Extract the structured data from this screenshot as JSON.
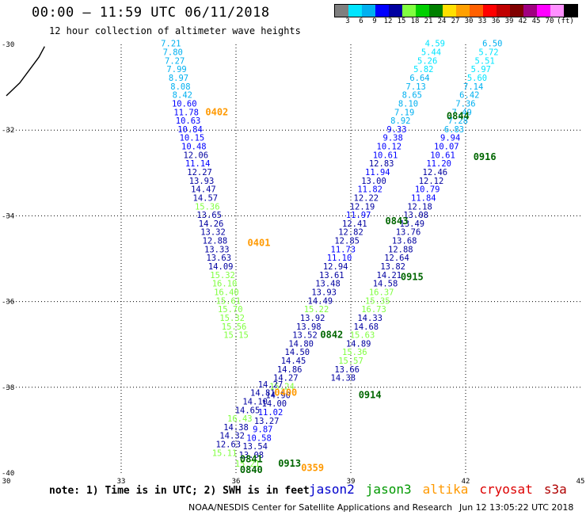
{
  "header": {
    "title": "00:00 – 11:59 UTC 06/11/2018",
    "subtitle": "12 hour collection of altimeter wave heights"
  },
  "colorbar": {
    "colors": [
      "#7f7f7f",
      "#00e5ff",
      "#00b0f0",
      "#0000ff",
      "#0000a0",
      "#80ff40",
      "#00d000",
      "#008000",
      "#ffe000",
      "#ffa000",
      "#ff6000",
      "#ff0000",
      "#c00000",
      "#800000",
      "#a00080",
      "#ff00ff",
      "#ff90ff",
      "#000000"
    ],
    "ticks": [
      "3",
      "6",
      "9",
      "12",
      "15",
      "18",
      "21",
      "24",
      "27",
      "30",
      "33",
      "36",
      "39",
      "42",
      "45",
      "70",
      "(ft)"
    ]
  },
  "footer": {
    "note": "note: 1) Time is in UTC; 2) SWH is in feet",
    "credit": "NOAA/NESDIS Center for Satellite Applications and Research",
    "timestamp": "Jun 12 13:05:22 UTC 2018"
  },
  "legend": [
    {
      "name": "jason2",
      "color": "#0000cc"
    },
    {
      "name": "jason3",
      "color": "#009900"
    },
    {
      "name": "altika",
      "color": "#ff9900"
    },
    {
      "name": "cryosat",
      "color": "#dd0000"
    },
    {
      "name": "s3a",
      "color": "#b00000"
    }
  ],
  "chart_data": {
    "type": "scatter",
    "title": "00:00 – 11:59 UTC 06/11/2018",
    "xlim": [
      30,
      45
    ],
    "ylim": [
      -40,
      -30
    ],
    "xticks": [
      "30",
      "33",
      "36",
      "39",
      "42",
      "45"
    ],
    "yticks": [
      "-30",
      "-32",
      "-34",
      "-36",
      "-38",
      "-40"
    ],
    "grid": true,
    "color_scale": [
      {
        "max": 3,
        "color": "#7f7f7f"
      },
      {
        "max": 6,
        "color": "#00e5ff"
      },
      {
        "max": 9,
        "color": "#00b0f0"
      },
      {
        "max": 12,
        "color": "#0000ff"
      },
      {
        "max": 15,
        "color": "#0000a0"
      },
      {
        "max": 18,
        "color": "#80ff40"
      },
      {
        "max": 21,
        "color": "#00d000"
      },
      {
        "max": 24,
        "color": "#008000"
      }
    ],
    "coastline": [
      [
        30.0,
        -31.2
      ],
      [
        30.35,
        -30.9
      ],
      [
        30.6,
        -30.6
      ],
      [
        30.85,
        -30.3
      ],
      [
        31.0,
        -30.05
      ]
    ],
    "tracks": [
      {
        "name": "altika",
        "time_labels": [
          {
            "time": "0402",
            "x": 35.5,
            "y": -31.65
          },
          {
            "time": "0401",
            "x": 36.6,
            "y": -34.7
          },
          {
            "time": "0400",
            "x": 37.3,
            "y": -38.2
          },
          {
            "time": "0359",
            "x": 38.0,
            "y": -39.95
          }
        ],
        "points": [
          [
            34.3,
            -30.05,
            7.21
          ],
          [
            34.35,
            -30.25,
            7.8
          ],
          [
            34.4,
            -30.45,
            7.27
          ],
          [
            34.45,
            -30.65,
            7.99
          ],
          [
            34.5,
            -30.85,
            8.97
          ],
          [
            34.55,
            -31.05,
            8.08
          ],
          [
            34.6,
            -31.25,
            8.42
          ],
          [
            34.65,
            -31.45,
            10.6
          ],
          [
            34.7,
            -31.65,
            11.78
          ],
          [
            34.75,
            -31.85,
            10.63
          ],
          [
            34.8,
            -32.05,
            10.84
          ],
          [
            34.85,
            -32.25,
            10.15
          ],
          [
            34.9,
            -32.45,
            10.48
          ],
          [
            34.95,
            -32.65,
            12.06
          ],
          [
            35.0,
            -32.85,
            11.14
          ],
          [
            35.05,
            -33.05,
            12.27
          ],
          [
            35.1,
            -33.25,
            13.93
          ],
          [
            35.15,
            -33.45,
            14.47
          ],
          [
            35.2,
            -33.65,
            14.57
          ],
          [
            35.25,
            -33.85,
            15.36
          ],
          [
            35.3,
            -34.05,
            13.65
          ],
          [
            35.35,
            -34.25,
            14.26
          ],
          [
            35.4,
            -34.45,
            13.32
          ],
          [
            35.45,
            -34.65,
            12.88
          ],
          [
            35.5,
            -34.85,
            13.33
          ],
          [
            35.55,
            -35.05,
            13.63
          ],
          [
            35.6,
            -35.25,
            14.09
          ],
          [
            35.65,
            -35.45,
            15.32
          ],
          [
            35.7,
            -35.65,
            16.1
          ],
          [
            35.75,
            -35.85,
            16.4
          ],
          [
            35.8,
            -36.05,
            15.61
          ],
          [
            35.85,
            -36.25,
            15.7
          ],
          [
            35.9,
            -36.45,
            15.32
          ],
          [
            35.95,
            -36.65,
            15.56
          ],
          [
            36.0,
            -36.85,
            15.15
          ]
        ]
      },
      {
        "name": "jason3",
        "time_labels": [
          {
            "time": "0844",
            "x": 41.8,
            "y": -31.75
          },
          {
            "time": "0916",
            "x": 42.5,
            "y": -32.7
          },
          {
            "time": "0843",
            "x": 40.2,
            "y": -34.2
          },
          {
            "time": "0915",
            "x": 40.6,
            "y": -35.5
          },
          {
            "time": "0842",
            "x": 38.5,
            "y": -36.85
          },
          {
            "time": "0914",
            "x": 39.5,
            "y": -38.25
          },
          {
            "time": "0841",
            "x": 36.4,
            "y": -39.75
          },
          {
            "time": "0913",
            "x": 37.4,
            "y": -39.85
          },
          {
            "time": "0840",
            "x": 36.4,
            "y": -40.0
          }
        ],
        "points": [
          [
            41.2,
            -30.05,
            4.59
          ],
          [
            41.1,
            -30.25,
            5.44
          ],
          [
            41.0,
            -30.45,
            5.26
          ],
          [
            40.9,
            -30.65,
            5.82
          ],
          [
            40.8,
            -30.85,
            6.64
          ],
          [
            40.7,
            -31.05,
            7.13
          ],
          [
            40.6,
            -31.25,
            8.65
          ],
          [
            40.5,
            -31.45,
            8.1
          ],
          [
            40.4,
            -31.65,
            7.19
          ],
          [
            40.3,
            -31.85,
            8.92
          ],
          [
            40.2,
            -32.05,
            9.33
          ],
          [
            40.1,
            -32.25,
            9.38
          ],
          [
            40.0,
            -32.45,
            10.12
          ],
          [
            39.9,
            -32.65,
            10.61
          ],
          [
            39.8,
            -32.85,
            12.83
          ],
          [
            39.7,
            -33.05,
            11.94
          ],
          [
            39.6,
            -33.25,
            13.0
          ],
          [
            39.5,
            -33.45,
            11.82
          ],
          [
            39.4,
            -33.65,
            12.22
          ],
          [
            39.3,
            -33.85,
            12.19
          ],
          [
            39.2,
            -34.05,
            11.97
          ],
          [
            39.1,
            -34.25,
            12.41
          ],
          [
            39.0,
            -34.45,
            12.82
          ],
          [
            38.9,
            -34.65,
            12.85
          ],
          [
            38.8,
            -34.85,
            11.73
          ],
          [
            38.7,
            -35.05,
            11.1
          ],
          [
            38.6,
            -35.25,
            12.94
          ],
          [
            38.5,
            -35.45,
            13.61
          ],
          [
            38.4,
            -35.65,
            13.48
          ],
          [
            38.3,
            -35.85,
            13.93
          ],
          [
            38.2,
            -36.05,
            14.49
          ],
          [
            38.1,
            -36.25,
            15.22
          ],
          [
            38.0,
            -36.45,
            13.92
          ],
          [
            37.9,
            -36.65,
            13.98
          ],
          [
            37.8,
            -36.85,
            13.52
          ],
          [
            37.7,
            -37.05,
            14.8
          ],
          [
            37.6,
            -37.25,
            14.5
          ],
          [
            37.5,
            -37.45,
            14.45
          ],
          [
            37.4,
            -37.65,
            14.86
          ],
          [
            37.3,
            -37.85,
            14.27
          ],
          [
            37.2,
            -38.05,
            15.24
          ],
          [
            37.1,
            -38.25,
            14.9
          ],
          [
            37.0,
            -38.45,
            14.0
          ],
          [
            36.9,
            -38.65,
            11.02
          ],
          [
            36.8,
            -38.85,
            13.27
          ],
          [
            36.7,
            -39.05,
            9.87
          ],
          [
            36.6,
            -39.25,
            10.58
          ],
          [
            36.5,
            -39.45,
            13.54
          ],
          [
            36.4,
            -39.65,
            13.08
          ],
          [
            36.3,
            -39.85,
            15.21
          ],
          [
            36.9,
            -38.0,
            14.27
          ],
          [
            36.7,
            -38.2,
            14.81
          ],
          [
            36.5,
            -38.4,
            14.1
          ],
          [
            36.3,
            -38.6,
            14.65
          ],
          [
            36.1,
            -38.8,
            16.43
          ],
          [
            36.0,
            -39.0,
            14.38
          ],
          [
            35.9,
            -39.2,
            14.32
          ],
          [
            35.8,
            -39.4,
            12.63
          ],
          [
            35.7,
            -39.6,
            15.11
          ]
        ]
      },
      {
        "name": "jason3",
        "points": [
          [
            42.7,
            -30.05,
            6.5
          ],
          [
            42.6,
            -30.25,
            5.72
          ],
          [
            42.5,
            -30.45,
            5.51
          ],
          [
            42.4,
            -30.65,
            5.97
          ],
          [
            42.3,
            -30.85,
            5.6
          ],
          [
            42.2,
            -31.05,
            7.14
          ],
          [
            42.1,
            -31.25,
            6.42
          ],
          [
            42.0,
            -31.45,
            7.36
          ],
          [
            41.9,
            -31.65,
            7.49
          ],
          [
            41.8,
            -31.85,
            7.28
          ],
          [
            41.7,
            -32.05,
            6.83
          ],
          [
            41.6,
            -32.25,
            9.94
          ],
          [
            41.5,
            -32.45,
            10.07
          ],
          [
            41.4,
            -32.65,
            10.61
          ],
          [
            41.3,
            -32.85,
            11.2
          ],
          [
            41.2,
            -33.05,
            12.46
          ],
          [
            41.1,
            -33.25,
            12.12
          ],
          [
            41.0,
            -33.45,
            10.79
          ],
          [
            40.9,
            -33.65,
            11.84
          ],
          [
            40.8,
            -33.85,
            12.18
          ],
          [
            40.7,
            -34.05,
            13.08
          ],
          [
            40.6,
            -34.25,
            13.49
          ],
          [
            40.5,
            -34.45,
            13.76
          ],
          [
            40.4,
            -34.65,
            13.68
          ],
          [
            40.3,
            -34.85,
            12.88
          ],
          [
            40.2,
            -35.05,
            12.64
          ],
          [
            40.1,
            -35.25,
            13.82
          ],
          [
            40.0,
            -35.45,
            14.21
          ],
          [
            39.9,
            -35.65,
            14.58
          ],
          [
            39.8,
            -35.85,
            16.37
          ],
          [
            39.7,
            -36.05,
            15.35
          ],
          [
            39.6,
            -36.25,
            16.73
          ],
          [
            39.5,
            -36.45,
            14.33
          ],
          [
            39.4,
            -36.65,
            14.68
          ],
          [
            39.3,
            -36.85,
            15.63
          ],
          [
            39.2,
            -37.05,
            14.89
          ],
          [
            39.1,
            -37.25,
            15.36
          ],
          [
            39.0,
            -37.45,
            15.57
          ],
          [
            38.9,
            -37.65,
            13.66
          ],
          [
            38.8,
            -37.85,
            14.38
          ]
        ]
      }
    ]
  }
}
